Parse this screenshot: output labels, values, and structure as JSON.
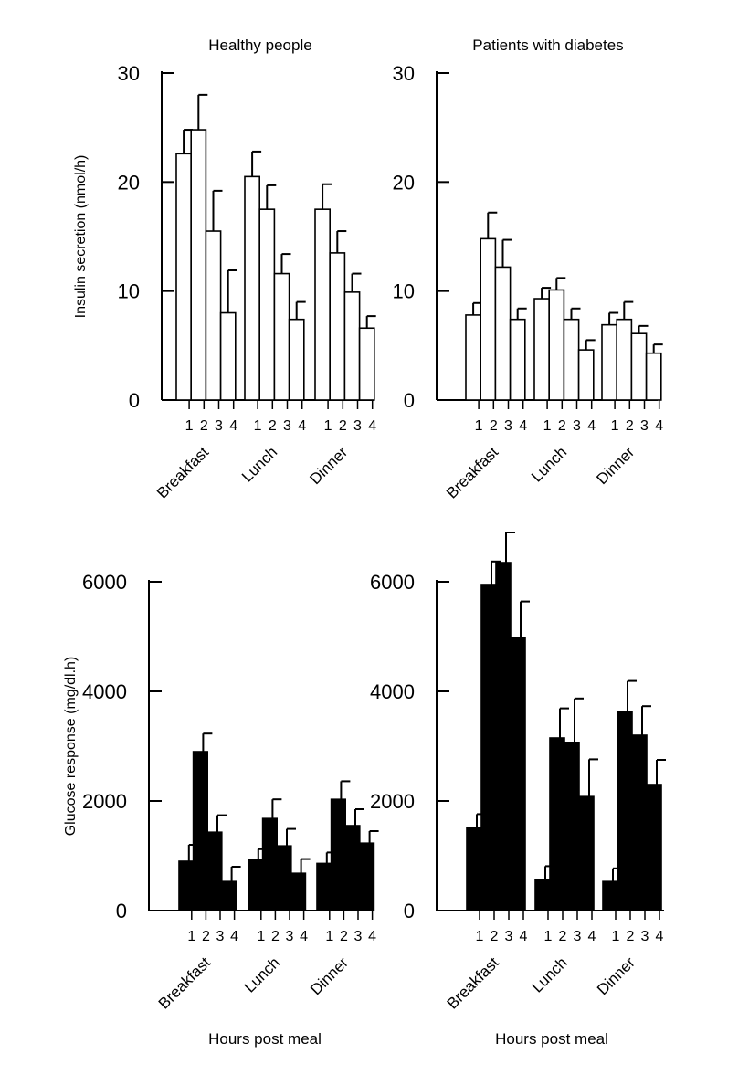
{
  "panel_titles": [
    "Healthy people",
    "Patients with diabetes"
  ],
  "y_labels": [
    "Insulin secretion (nmol/h)",
    "Glucose response (mg/dl.h)"
  ],
  "x_label": "Hours post meal",
  "meals": [
    "Breakfast",
    "Lunch",
    "Dinner"
  ],
  "hours": [
    "1",
    "2",
    "3",
    "4"
  ],
  "colors": {
    "open_bar": "#ffffff",
    "filled_bar": "#000000",
    "stroke": "#000000"
  },
  "chart_data": [
    {
      "type": "bar",
      "title": "Healthy people",
      "ylabel": "Insulin secretion (nmol/h)",
      "xlabel": "",
      "ylim": [
        0,
        30
      ],
      "yticks": [
        0,
        10,
        20,
        30
      ],
      "fill": "open",
      "categories": [
        "Breakfast",
        "Lunch",
        "Dinner"
      ],
      "hours": [
        "1",
        "2",
        "3",
        "4"
      ],
      "values": [
        [
          22.6,
          24.8,
          15.5,
          8.0
        ],
        [
          20.5,
          17.5,
          11.6,
          7.4
        ],
        [
          17.5,
          13.5,
          9.9,
          6.6
        ]
      ],
      "errors": [
        [
          2.2,
          3.2,
          3.7,
          3.9
        ],
        [
          2.3,
          2.2,
          1.8,
          1.6
        ],
        [
          2.3,
          2.0,
          1.7,
          1.1
        ]
      ]
    },
    {
      "type": "bar",
      "title": "Patients with diabetes",
      "ylabel": "",
      "xlabel": "",
      "ylim": [
        0,
        30
      ],
      "yticks": [
        0,
        10,
        20,
        30
      ],
      "fill": "open",
      "categories": [
        "Breakfast",
        "Lunch",
        "Dinner"
      ],
      "hours": [
        "1",
        "2",
        "3",
        "4"
      ],
      "values": [
        [
          7.8,
          14.8,
          12.2,
          7.4
        ],
        [
          9.3,
          10.1,
          7.4,
          4.6
        ],
        [
          6.9,
          7.4,
          6.1,
          4.3
        ]
      ],
      "errors": [
        [
          1.1,
          2.4,
          2.5,
          1.0
        ],
        [
          1.0,
          1.1,
          1.0,
          0.9
        ],
        [
          1.1,
          1.6,
          0.7,
          0.8
        ]
      ]
    },
    {
      "type": "bar",
      "title": "",
      "ylabel": "Glucose response (mg/dl.h)",
      "xlabel": "Hours post meal",
      "ylim": [
        0,
        6000
      ],
      "yticks": [
        0,
        2000,
        4000,
        6000
      ],
      "fill": "filled",
      "categories": [
        "Breakfast",
        "Lunch",
        "Dinner"
      ],
      "hours": [
        "1",
        "2",
        "3",
        "4"
      ],
      "values": [
        [
          900,
          2900,
          1430,
          530
        ],
        [
          920,
          1680,
          1180,
          680
        ],
        [
          860,
          2030,
          1550,
          1230
        ]
      ],
      "errors": [
        [
          300,
          330,
          310,
          270
        ],
        [
          200,
          350,
          310,
          260
        ],
        [
          200,
          330,
          300,
          220
        ]
      ]
    },
    {
      "type": "bar",
      "title": "",
      "ylabel": "",
      "xlabel": "Hours post meal",
      "ylim": [
        0,
        6000
      ],
      "yticks": [
        0,
        2000,
        4000,
        6000
      ],
      "fill": "filled",
      "categories": [
        "Breakfast",
        "Lunch",
        "Dinner"
      ],
      "hours": [
        "1",
        "2",
        "3",
        "4"
      ],
      "values": [
        [
          1520,
          5950,
          6350,
          4970
        ],
        [
          570,
          3150,
          3070,
          2080
        ],
        [
          530,
          3620,
          3200,
          2300
        ]
      ],
      "errors": [
        [
          240,
          420,
          550,
          670
        ],
        [
          240,
          540,
          800,
          680
        ],
        [
          240,
          570,
          530,
          450
        ]
      ]
    }
  ]
}
